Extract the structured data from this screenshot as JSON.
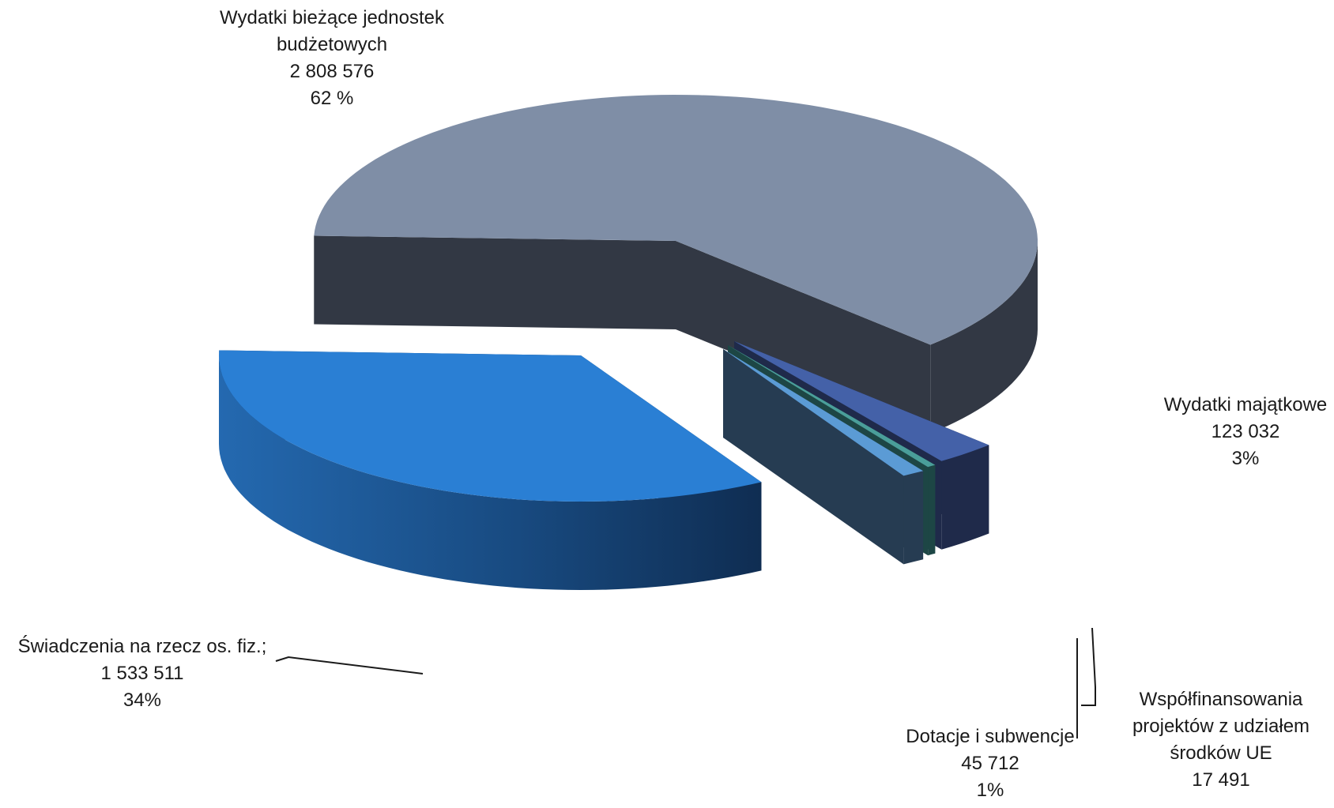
{
  "chart_data": {
    "type": "pie",
    "style": "3d-exploded",
    "legend": "none",
    "slices": [
      {
        "label_lines": [
          "Wydatki bieżące jednostek",
          "budżetowych"
        ],
        "value": 2808576,
        "value_text": "2 808 576",
        "percent": 62,
        "percent_text": "62 %",
        "top_color": "#7f8ea6",
        "side_color": "#323844"
      },
      {
        "label_lines": [
          "Wydatki majątkowe"
        ],
        "value": 123032,
        "value_text": "123 032",
        "percent": 3,
        "percent_text": "3%",
        "top_color": "#4461a8",
        "side_color": "#1f2a4a"
      },
      {
        "label_lines": [
          "Współfinansowania",
          "projektów z udziałem",
          "środków UE"
        ],
        "value": 17491,
        "value_text": "17 491",
        "percent": null,
        "percent_text": "",
        "top_color": "#4a9e9a",
        "side_color": "#1d4645"
      },
      {
        "label_lines": [
          "Dotacje i subwencje"
        ],
        "value": 45712,
        "value_text": "45 712",
        "percent": 1,
        "percent_text": "1%",
        "top_color": "#5b9bd5",
        "side_color": "#263c52"
      },
      {
        "label_lines": [
          "Świadczenia na rzecz os. fiz.;"
        ],
        "value": 1533511,
        "value_text": "1 533 511",
        "percent": 34,
        "percent_text": "34%",
        "top_color": "#2a7fd4",
        "side_color": "#123055"
      }
    ]
  }
}
